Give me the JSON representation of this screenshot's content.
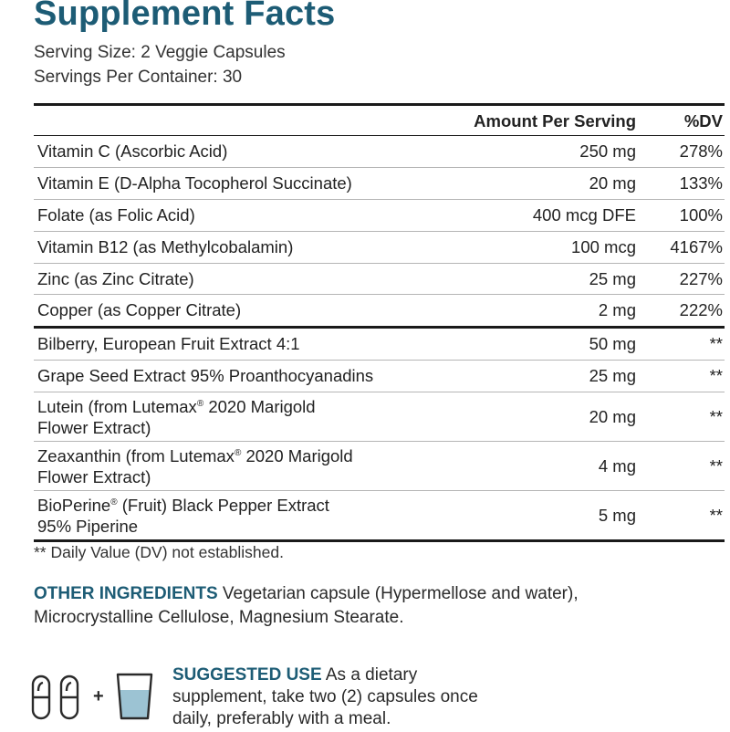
{
  "title": "Supplement Facts",
  "serving_size": "Serving Size: 2 Veggie Capsules",
  "servings_per_container": "Servings Per Container: 30",
  "table": {
    "header_amount": "Amount Per Serving",
    "header_dv": "%DV",
    "vitamins": [
      {
        "name": "Vitamin C (Ascorbic Acid)",
        "amount": "250 mg",
        "dv": "278%"
      },
      {
        "name": "Vitamin E (D-Alpha Tocopherol Succinate)",
        "amount": "20 mg",
        "dv": "133%"
      },
      {
        "name": "Folate (as Folic Acid)",
        "amount": "400 mcg DFE",
        "dv": "100%"
      },
      {
        "name": "Vitamin B12 (as Methylcobalamin)",
        "amount": "100 mcg",
        "dv": "4167%"
      },
      {
        "name": "Zinc (as Zinc Citrate)",
        "amount": "25 mg",
        "dv": "227%"
      },
      {
        "name": "Copper (as Copper Citrate)",
        "amount": "2 mg",
        "dv": "222%"
      }
    ],
    "extracts": [
      {
        "name": "Bilberry, European Fruit Extract 4:1",
        "amount": "50 mg",
        "dv": "**"
      },
      {
        "name": "Grape Seed Extract 95% Proanthocyanadins",
        "amount": "25 mg",
        "dv": "**"
      },
      {
        "name_a": "Lutein (from Lutemax",
        "mark": "®",
        "name_b": " 2020 Marigold",
        "name_c": "Flower Extract)",
        "amount": "20 mg",
        "dv": "**"
      },
      {
        "name_a": "Zeaxanthin (from Lutemax",
        "mark": "®",
        "name_b": " 2020 Marigold",
        "name_c": "Flower Extract)",
        "amount": "4 mg",
        "dv": "**"
      },
      {
        "name_a": "BioPerine",
        "mark": "®",
        "name_b": " (Fruit) Black Pepper Extract",
        "name_c": "95% Piperine",
        "amount": "5 mg",
        "dv": "**"
      }
    ]
  },
  "dv_note": "** Daily Value (DV) not established.",
  "other_ingredients": {
    "label": "OTHER INGREDIENTS",
    "text": " Vegetarian capsule (Hypermellose and water), Microcrystalline Cellulose, Magnesium Stearate."
  },
  "suggested_use": {
    "label": "SUGGESTED USE",
    "text": " As a dietary supplement, take two (2) capsules once daily, preferably with a meal."
  },
  "icons": {
    "capsule_icon": "capsule-icon",
    "plus_icon": "plus-icon",
    "glass_icon": "water-glass-icon",
    "plus_symbol": "+",
    "accent_color": "#1d5c75",
    "water_color": "#9cc3d3"
  }
}
